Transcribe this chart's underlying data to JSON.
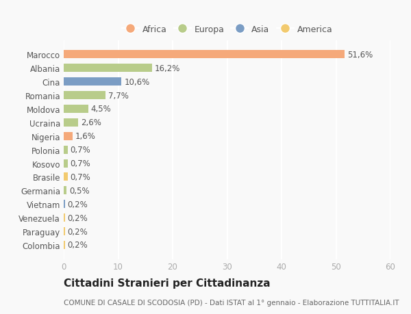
{
  "countries": [
    "Marocco",
    "Albania",
    "Cina",
    "Romania",
    "Moldova",
    "Ucraina",
    "Nigeria",
    "Polonia",
    "Kosovo",
    "Brasile",
    "Germania",
    "Vietnam",
    "Venezuela",
    "Paraguay",
    "Colombia"
  ],
  "values": [
    51.6,
    16.2,
    10.6,
    7.7,
    4.5,
    2.6,
    1.6,
    0.7,
    0.7,
    0.7,
    0.5,
    0.2,
    0.2,
    0.2,
    0.2
  ],
  "labels": [
    "51,6%",
    "16,2%",
    "10,6%",
    "7,7%",
    "4,5%",
    "2,6%",
    "1,6%",
    "0,7%",
    "0,7%",
    "0,7%",
    "0,5%",
    "0,2%",
    "0,2%",
    "0,2%",
    "0,2%"
  ],
  "continents": [
    "Africa",
    "Europa",
    "Asia",
    "Europa",
    "Europa",
    "Europa",
    "Africa",
    "Europa",
    "Europa",
    "America",
    "Europa",
    "Asia",
    "America",
    "America",
    "America"
  ],
  "colors": {
    "Africa": "#F5A97A",
    "Europa": "#B8CC8A",
    "Asia": "#7B9DC4",
    "America": "#F2CA6E"
  },
  "xlim": [
    0,
    60
  ],
  "xticks": [
    0,
    10,
    20,
    30,
    40,
    50,
    60
  ],
  "title": "Cittadini Stranieri per Cittadinanza",
  "subtitle": "COMUNE DI CASALE DI SCODOSIA (PD) - Dati ISTAT al 1° gennaio - Elaborazione TUTTITALIA.IT",
  "background_color": "#f9f9f9",
  "grid_color": "#ffffff",
  "bar_height": 0.6,
  "label_fontsize": 8.5,
  "tick_fontsize": 8.5,
  "title_fontsize": 11,
  "subtitle_fontsize": 7.5,
  "legend_entries": [
    "Africa",
    "Europa",
    "Asia",
    "America"
  ]
}
